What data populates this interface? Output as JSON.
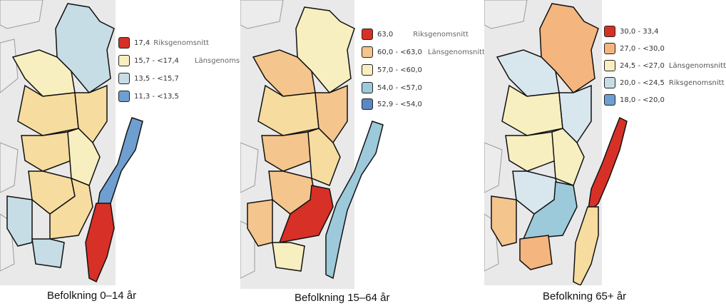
{
  "maps": [
    {
      "caption": "Befolkning 0–14 år",
      "legend": [
        {
          "range": "17,4",
          "note": "Riksgenomsnitt",
          "color": "#d73027"
        },
        {
          "range": "15,7 - <17,4",
          "note": "Länsgenomsnitt",
          "color": "#f7efc0"
        },
        {
          "range": "13,5 - <15,7",
          "note": "",
          "color": "#c6dde6"
        },
        {
          "range": "11,3 - <13,5",
          "note": "",
          "color": "#6f9fd0"
        }
      ]
    },
    {
      "caption": "Befolkning 15–64 år",
      "legend": [
        {
          "range": "63,0",
          "note": "Riksgenomsnitt",
          "color": "#d73027"
        },
        {
          "range": "60,0 - <63,0",
          "note": "Länsgenomsnitt",
          "color": "#f4c58c"
        },
        {
          "range": "57,0 - <60,0",
          "note": "",
          "color": "#f7efc0"
        },
        {
          "range": "54,0 - <57,0",
          "note": "",
          "color": "#9ccadb"
        },
        {
          "range": "52,9 - <54,0",
          "note": "",
          "color": "#5b87c5"
        }
      ]
    },
    {
      "caption": "Befolkning 65+ år",
      "legend": [
        {
          "range": "30,0 - 33,4",
          "note": "",
          "color": "#d73027"
        },
        {
          "range": "27,0 - <30,0",
          "note": "",
          "color": "#f4b57e"
        },
        {
          "range": "24,5 - <27,0",
          "note": "Länsgenomsnitt",
          "color": "#f7efc0"
        },
        {
          "range": "20,0 - <24,5",
          "note": "Riksgenomsnitt",
          "color": "#c6dde6"
        },
        {
          "range": "18,0 - <20,0",
          "note": "",
          "color": "#6f9fd0"
        }
      ]
    }
  ],
  "colors": {
    "background_land": "#e9e9e9",
    "sea": "#ffffff",
    "border": "#111111"
  }
}
